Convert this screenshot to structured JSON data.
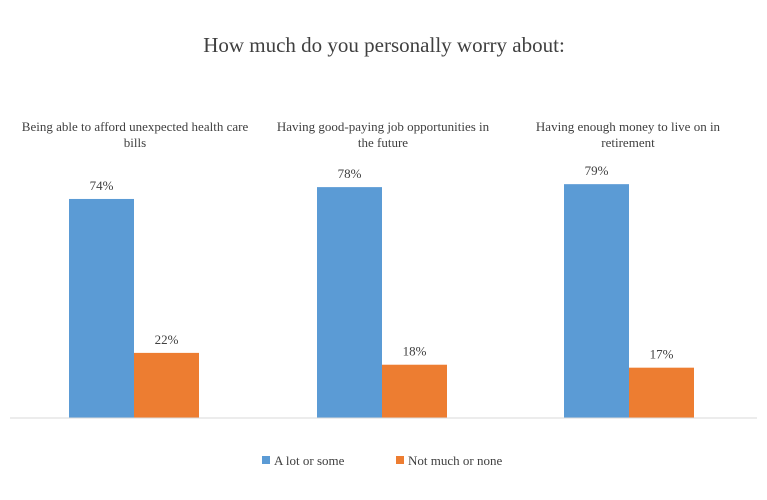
{
  "chart_data": {
    "type": "bar",
    "title": "How much do you personally worry about:",
    "categories": [
      [
        "Being able to afford unexpected health care",
        "bills"
      ],
      [
        "Having good-paying job opportunities in",
        "the future"
      ],
      [
        "Having enough money to live on in",
        "retirement"
      ]
    ],
    "series": [
      {
        "name": "A lot or some",
        "color": "#5b9bd5",
        "values": [
          74,
          78,
          79
        ],
        "labels": [
          "74%",
          "78%",
          "79%"
        ]
      },
      {
        "name": "Not much or none",
        "color": "#ed7d31",
        "values": [
          22,
          18,
          17
        ],
        "labels": [
          "22%",
          "18%",
          "17%"
        ]
      }
    ],
    "xlabel": "",
    "ylabel": "",
    "ylim": [
      0,
      100
    ],
    "grid": false,
    "legend": "bottom"
  }
}
